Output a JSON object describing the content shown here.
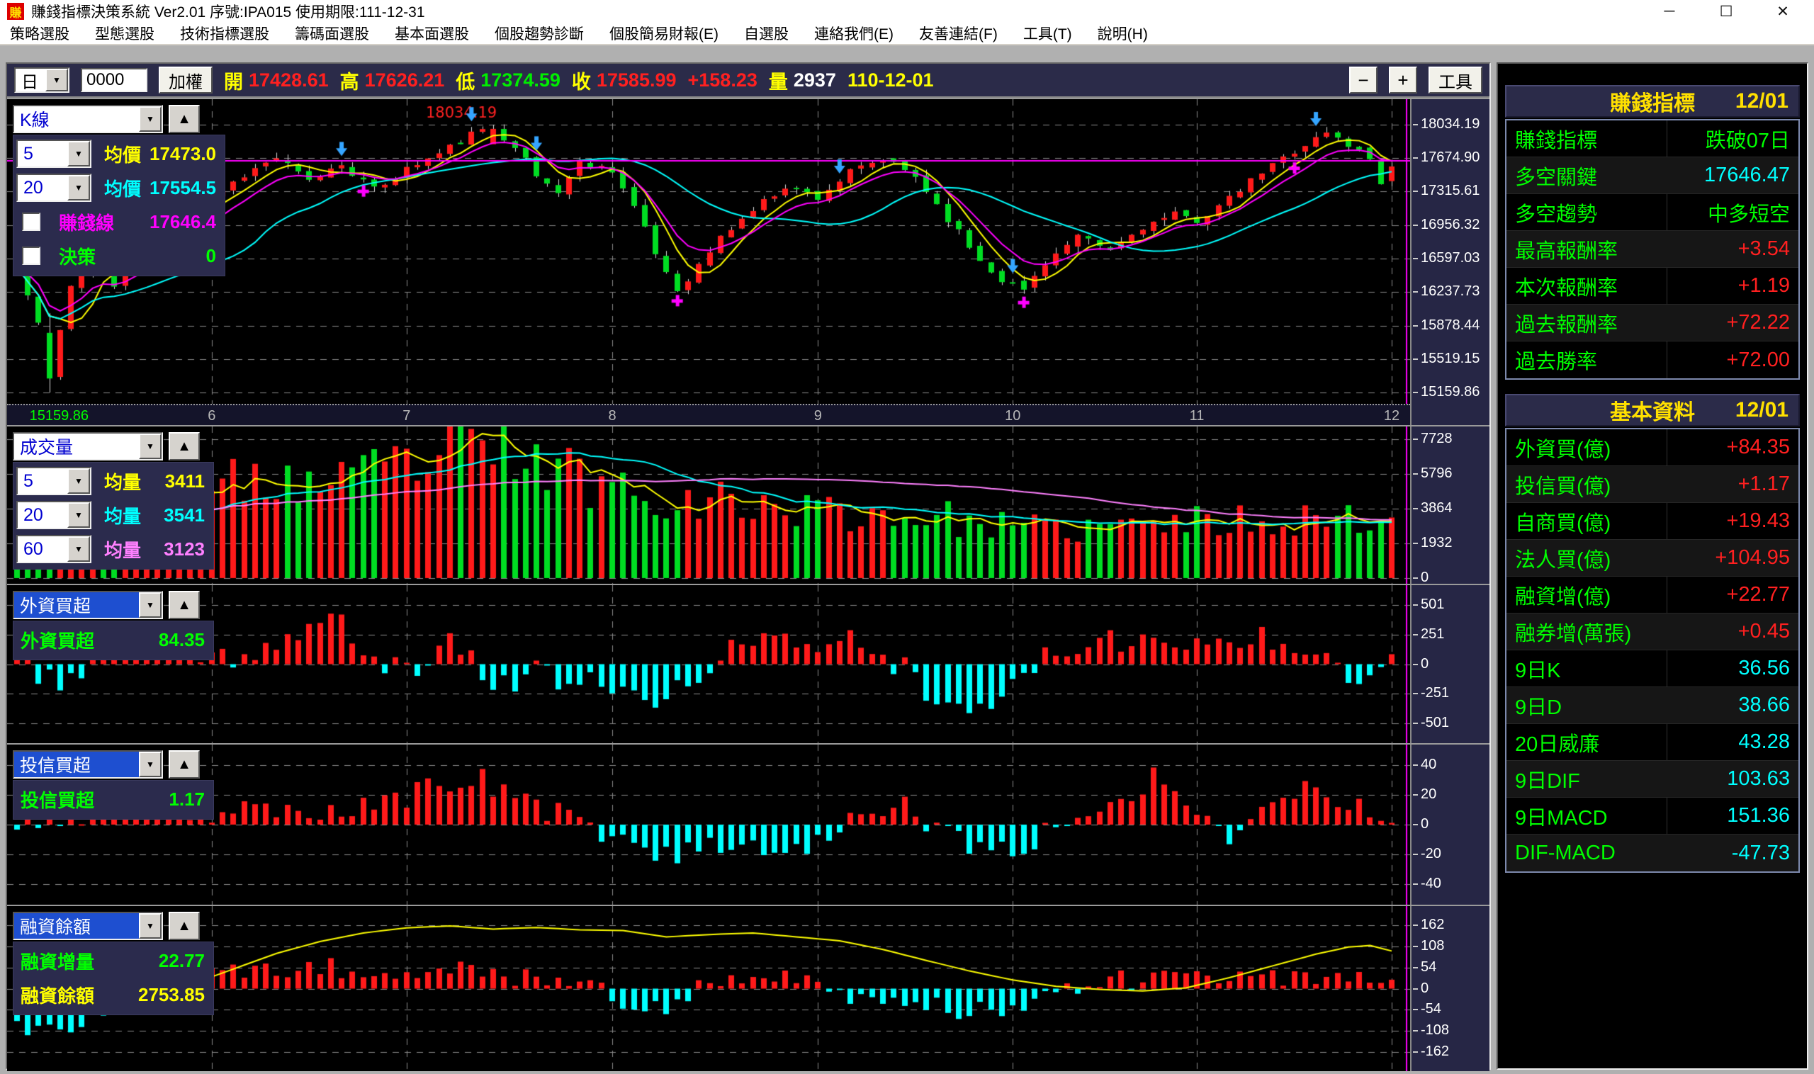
{
  "window": {
    "title": "賺錢指標決策系統 Ver2.01 序號:IPA015 使用期限:111-12-31",
    "icon_text": "賺",
    "controls": {
      "minimize": "─",
      "maximize": "☐",
      "close": "✕"
    }
  },
  "menu": {
    "items": [
      "策略選股",
      "型態選股",
      "技術指標選股",
      "籌碼面選股",
      "基本面選股",
      "個股趨勢診斷",
      "個股簡易財報(E)",
      "自選股",
      "連絡我們(E)",
      "友善連結(F)",
      "工具(T)",
      "說明(H)"
    ]
  },
  "toolbar": {
    "period": "日",
    "symbol": "0000",
    "index_button": "加權",
    "quote": {
      "open_label": "開",
      "open": "17428.61",
      "high_label": "高",
      "high": "17626.21",
      "low_label": "低",
      "low": "17374.59",
      "close_label": "收",
      "close": "17585.99",
      "change": "+158.23",
      "vol_label": "量",
      "volume": "2937",
      "date": "110-12-01"
    },
    "zoom_out": "−",
    "zoom_in": "+",
    "tools_button": "工具"
  },
  "panels": {
    "main": {
      "selector": "K線",
      "highlighted": false,
      "rows": [
        {
          "period": "5",
          "label": "均價",
          "value": "17473.0",
          "color": "#ffff00"
        },
        {
          "period": "20",
          "label": "均價",
          "value": "17554.5",
          "color": "#00ffff"
        },
        {
          "checkbox": true,
          "label": "賺錢線",
          "value": "17646.4",
          "color": "#ff00ff"
        },
        {
          "checkbox": true,
          "label": "決策",
          "value": "0",
          "color": "#00ff00"
        }
      ]
    },
    "vol": {
      "selector": "成交量",
      "highlighted": false,
      "rows": [
        {
          "period": "5",
          "label": "均量",
          "value": "3411",
          "color": "#ffff00"
        },
        {
          "period": "20",
          "label": "均量",
          "value": "3541",
          "color": "#00ffff"
        },
        {
          "period": "60",
          "label": "均量",
          "value": "3123",
          "color": "#ff80ff"
        }
      ]
    },
    "for": {
      "selector": "外資買超",
      "highlighted": true,
      "rows": [
        {
          "label": "外資買超",
          "value": "84.35",
          "color": "#00ff00"
        }
      ]
    },
    "tru": {
      "selector": "投信買超",
      "highlighted": true,
      "rows": [
        {
          "label": "投信買超",
          "value": "1.17",
          "color": "#00ff00"
        }
      ]
    },
    "mar": {
      "selector": "融資餘額",
      "highlighted": true,
      "rows": [
        {
          "label": "融資增量",
          "value": "22.77",
          "color": "#00ff00"
        },
        {
          "label": "融資餘額",
          "value": "2753.85",
          "color": "#ffff00"
        }
      ]
    }
  },
  "sidebar": {
    "section1": {
      "title": "賺錢指標",
      "date": "12/01",
      "rows": [
        {
          "label": "賺錢指標",
          "value": "跌破07日",
          "color": "#00ff00"
        },
        {
          "label": "多空關鍵",
          "value": "17646.47",
          "color": "#00ffff"
        },
        {
          "label": "多空趨勢",
          "value": "中多短空",
          "color": "#00ff00"
        },
        {
          "label": "最高報酬率",
          "value": "+3.54",
          "color": "#ff2020"
        },
        {
          "label": "本次報酬率",
          "value": "+1.19",
          "color": "#ff2020"
        },
        {
          "label": "過去報酬率",
          "value": "+72.22",
          "color": "#ff2020"
        },
        {
          "label": "過去勝率",
          "value": "+72.00",
          "color": "#ff2020"
        }
      ]
    },
    "section2": {
      "title": "基本資料",
      "date": "12/01",
      "rows": [
        {
          "label": "外資買(億)",
          "value": "+84.35",
          "color": "#ff2020"
        },
        {
          "label": "投信買(億)",
          "value": "+1.17",
          "color": "#ff2020"
        },
        {
          "label": "自商買(億)",
          "value": "+19.43",
          "color": "#ff2020"
        },
        {
          "label": "法人買(億)",
          "value": "+104.95",
          "color": "#ff2020"
        },
        {
          "label": "融資增(億)",
          "value": "+22.77",
          "color": "#ff2020"
        },
        {
          "label": "融券增(萬張)",
          "value": "+0.45",
          "color": "#ff2020"
        },
        {
          "label": "9日K",
          "value": "36.56",
          "color": "#00ffff"
        },
        {
          "label": "9日D",
          "value": "38.66",
          "color": "#00ffff"
        },
        {
          "label": "20日威廉",
          "value": "43.28",
          "color": "#00ffff"
        },
        {
          "label": "9日DIF",
          "value": "103.63",
          "color": "#00ffff"
        },
        {
          "label": "9日MACD",
          "value": "151.36",
          "color": "#00ffff"
        },
        {
          "label": "DIF-MACD",
          "value": "-47.73",
          "color": "#00ffff"
        }
      ]
    }
  },
  "chart_data": [
    {
      "id": "main",
      "type": "candlestick",
      "days": 128,
      "yticks": [
        "18034.19",
        "17674.90",
        "17315.61",
        "16956.32",
        "16597.03",
        "16237.73",
        "15878.44",
        "15519.15",
        "15159.86"
      ],
      "months": [
        {
          "label": "6",
          "day": 18
        },
        {
          "label": "7",
          "day": 36
        },
        {
          "label": "8",
          "day": 55
        },
        {
          "label": "9",
          "day": 74
        },
        {
          "label": "10",
          "day": 92
        },
        {
          "label": "11",
          "day": 109
        },
        {
          "label": "12",
          "day": 127
        }
      ],
      "price_anchors": [
        [
          0,
          16500
        ],
        [
          2,
          15900
        ],
        [
          3,
          15300
        ],
        [
          5,
          16300
        ],
        [
          7,
          16650
        ],
        [
          9,
          16300
        ],
        [
          12,
          16750
        ],
        [
          15,
          17100
        ],
        [
          18,
          17250
        ],
        [
          21,
          17500
        ],
        [
          24,
          17680
        ],
        [
          27,
          17420
        ],
        [
          30,
          17620
        ],
        [
          33,
          17330
        ],
        [
          36,
          17560
        ],
        [
          39,
          17720
        ],
        [
          42,
          17930
        ],
        [
          44,
          17990
        ],
        [
          46,
          17820
        ],
        [
          48,
          17480
        ],
        [
          50,
          17320
        ],
        [
          52,
          17620
        ],
        [
          55,
          17560
        ],
        [
          57,
          17150
        ],
        [
          59,
          16650
        ],
        [
          61,
          16260
        ],
        [
          63,
          16520
        ],
        [
          65,
          16820
        ],
        [
          68,
          17120
        ],
        [
          71,
          17380
        ],
        [
          74,
          17260
        ],
        [
          77,
          17520
        ],
        [
          80,
          17660
        ],
        [
          83,
          17480
        ],
        [
          85,
          17180
        ],
        [
          87,
          16880
        ],
        [
          89,
          16580
        ],
        [
          91,
          16380
        ],
        [
          93,
          16260
        ],
        [
          95,
          16560
        ],
        [
          98,
          16820
        ],
        [
          101,
          16680
        ],
        [
          104,
          16940
        ],
        [
          107,
          17060
        ],
        [
          109,
          17010
        ],
        [
          112,
          17230
        ],
        [
          115,
          17520
        ],
        [
          118,
          17760
        ],
        [
          121,
          17950
        ],
        [
          123,
          17820
        ],
        [
          125,
          17680
        ],
        [
          126,
          17430
        ],
        [
          127,
          17586
        ]
      ],
      "noise": 85,
      "seed": 11,
      "last": {
        "open": 17428.61,
        "high": 17626.21,
        "low": 17374.59,
        "close": 17585.99
      },
      "low_day": 3,
      "low": 15159.86,
      "low_label": "15159.86",
      "peak_day": 44,
      "peak": 18034.19,
      "peak_label": "18034.19",
      "hline": 17646.47,
      "hline_color": "#ff00ff",
      "ma": [
        {
          "period": 5,
          "color": "#ffff00"
        },
        {
          "period": 20,
          "color": "#00ffff"
        }
      ],
      "signal_color": "#ff00ff",
      "markers": {
        "arrows": [
          30,
          42,
          48,
          76,
          92,
          120
        ],
        "arrow_color": "#35a5ff",
        "crosses": [
          13,
          32,
          61,
          93,
          118
        ],
        "cross_color": "#ff00ff"
      },
      "up_color": "#ff1a1a",
      "down_color": "#00dd22",
      "wick_color": "#d8d8d8"
    },
    {
      "id": "vol",
      "type": "volume-bar",
      "days": 128,
      "ymax": 8200,
      "yticks": [
        "7728",
        "5796",
        "3864",
        "1932",
        "0"
      ],
      "anchors": [
        [
          0,
          2800
        ],
        [
          6,
          3600
        ],
        [
          12,
          4200
        ],
        [
          18,
          5000
        ],
        [
          24,
          5400
        ],
        [
          30,
          5100
        ],
        [
          36,
          6400
        ],
        [
          40,
          6900
        ],
        [
          44,
          7100
        ],
        [
          48,
          6300
        ],
        [
          52,
          5700
        ],
        [
          56,
          5100
        ],
        [
          60,
          4700
        ],
        [
          64,
          4300
        ],
        [
          68,
          4100
        ],
        [
          72,
          3900
        ],
        [
          76,
          3700
        ],
        [
          80,
          3500
        ],
        [
          84,
          3500
        ],
        [
          88,
          3100
        ],
        [
          92,
          2800
        ],
        [
          96,
          2700
        ],
        [
          100,
          2800
        ],
        [
          104,
          3000
        ],
        [
          108,
          3100
        ],
        [
          112,
          3200
        ],
        [
          116,
          3300
        ],
        [
          120,
          3400
        ],
        [
          124,
          3200
        ],
        [
          126,
          3100
        ],
        [
          127,
          4500
        ]
      ],
      "noise": 0.3,
      "seed": 23,
      "ma": [
        {
          "period": 5,
          "color": "#ffff00"
        },
        {
          "period": 20,
          "color": "#00ffff"
        },
        {
          "period": 60,
          "color": "#ff80ff"
        }
      ]
    },
    {
      "id": "for",
      "type": "net-bar",
      "days": 128,
      "ymax": 560,
      "yticks": [
        "501",
        "251",
        "0",
        "-251",
        "-501"
      ],
      "bias_anchors": [
        [
          0,
          0.1
        ],
        [
          4,
          -0.35
        ],
        [
          8,
          0.15
        ],
        [
          12,
          0.3
        ],
        [
          16,
          0.2
        ],
        [
          20,
          0.15
        ],
        [
          25,
          0.45
        ],
        [
          29,
          0.95
        ],
        [
          32,
          0.25
        ],
        [
          36,
          -0.2
        ],
        [
          40,
          0.5
        ],
        [
          44,
          -0.35
        ],
        [
          48,
          -0.2
        ],
        [
          52,
          -0.3
        ],
        [
          56,
          -0.6
        ],
        [
          59,
          -0.75
        ],
        [
          62,
          -0.5
        ],
        [
          65,
          0.3
        ],
        [
          68,
          0.45
        ],
        [
          72,
          0.35
        ],
        [
          76,
          0.55
        ],
        [
          80,
          0.25
        ],
        [
          84,
          -0.45
        ],
        [
          88,
          -0.8
        ],
        [
          92,
          -0.55
        ],
        [
          96,
          0.3
        ],
        [
          100,
          0.5
        ],
        [
          104,
          0.45
        ],
        [
          108,
          0.35
        ],
        [
          112,
          0.45
        ],
        [
          116,
          0.55
        ],
        [
          120,
          0.35
        ],
        [
          124,
          -0.25
        ],
        [
          127,
          0.17
        ]
      ],
      "scale": 430,
      "noise": 0.55,
      "seed": 37,
      "last": 84.35,
      "pos_color": "#ff1a1a",
      "neg_color": "#00ffff"
    },
    {
      "id": "tru",
      "type": "net-bar",
      "days": 128,
      "ymax": 45,
      "yticks": [
        "40",
        "20",
        "0",
        "-20",
        "-40"
      ],
      "bias_anchors": [
        [
          0,
          0.12
        ],
        [
          5,
          0.2
        ],
        [
          10,
          0.3
        ],
        [
          15,
          0.28
        ],
        [
          20,
          0.22
        ],
        [
          25,
          0.3
        ],
        [
          30,
          0.32
        ],
        [
          35,
          0.45
        ],
        [
          40,
          0.85
        ],
        [
          43,
          0.9
        ],
        [
          46,
          0.5
        ],
        [
          50,
          0.2
        ],
        [
          54,
          -0.25
        ],
        [
          58,
          -0.45
        ],
        [
          62,
          -0.55
        ],
        [
          66,
          -0.35
        ],
        [
          70,
          -0.45
        ],
        [
          74,
          -0.3
        ],
        [
          78,
          0.25
        ],
        [
          82,
          0.3
        ],
        [
          86,
          -0.25
        ],
        [
          90,
          -0.5
        ],
        [
          94,
          -0.3
        ],
        [
          98,
          0.2
        ],
        [
          102,
          0.6
        ],
        [
          105,
          0.9
        ],
        [
          108,
          0.45
        ],
        [
          112,
          -0.2
        ],
        [
          116,
          0.5
        ],
        [
          120,
          0.75
        ],
        [
          124,
          0.35
        ],
        [
          127,
          0.03
        ]
      ],
      "scale": 34,
      "noise": 0.5,
      "seed": 53,
      "last": 1.17,
      "pos_color": "#ff1a1a",
      "neg_color": "#00ffff"
    },
    {
      "id": "mar",
      "type": "net-bar-line",
      "days": 128,
      "ymax": 178,
      "yticks": [
        "162",
        "108",
        "54",
        "0",
        "-54",
        "-108",
        "-162"
      ],
      "bias_anchors": [
        [
          0,
          -0.85
        ],
        [
          4,
          -0.9
        ],
        [
          8,
          -0.5
        ],
        [
          12,
          0.2
        ],
        [
          16,
          0.3
        ],
        [
          20,
          0.42
        ],
        [
          24,
          0.5
        ],
        [
          28,
          0.5
        ],
        [
          32,
          0.42
        ],
        [
          36,
          0.34
        ],
        [
          40,
          0.42
        ],
        [
          44,
          0.3
        ],
        [
          48,
          0.22
        ],
        [
          52,
          0.2
        ],
        [
          56,
          -0.3
        ],
        [
          60,
          -0.42
        ],
        [
          64,
          0.2
        ],
        [
          68,
          0.3
        ],
        [
          72,
          0.22
        ],
        [
          76,
          -0.2
        ],
        [
          80,
          -0.32
        ],
        [
          84,
          -0.42
        ],
        [
          88,
          -0.5
        ],
        [
          92,
          -0.32
        ],
        [
          96,
          -0.22
        ],
        [
          100,
          0.2
        ],
        [
          104,
          0.2
        ],
        [
          108,
          0.16
        ],
        [
          112,
          0.2
        ],
        [
          116,
          0.26
        ],
        [
          120,
          0.22
        ],
        [
          124,
          0.3
        ],
        [
          127,
          0.21
        ]
      ],
      "scale": 115,
      "noise": 0.5,
      "seed": 71,
      "last": 22.77,
      "pos_color": "#ff1a1a",
      "neg_color": "#00ffff",
      "line_color": "#ffff00",
      "line_anchors": [
        [
          0,
          -42
        ],
        [
          4,
          -62
        ],
        [
          8,
          -55
        ],
        [
          12,
          -30
        ],
        [
          16,
          10
        ],
        [
          20,
          50
        ],
        [
          24,
          90
        ],
        [
          28,
          120
        ],
        [
          32,
          142
        ],
        [
          36,
          155
        ],
        [
          40,
          160
        ],
        [
          44,
          152
        ],
        [
          48,
          156
        ],
        [
          52,
          150
        ],
        [
          56,
          148
        ],
        [
          60,
          132
        ],
        [
          64,
          138
        ],
        [
          68,
          142
        ],
        [
          72,
          132
        ],
        [
          76,
          122
        ],
        [
          80,
          100
        ],
        [
          84,
          72
        ],
        [
          88,
          45
        ],
        [
          92,
          22
        ],
        [
          96,
          6
        ],
        [
          100,
          -2
        ],
        [
          104,
          -6
        ],
        [
          108,
          2
        ],
        [
          112,
          28
        ],
        [
          116,
          58
        ],
        [
          120,
          88
        ],
        [
          123,
          106
        ],
        [
          125,
          110
        ],
        [
          127,
          96
        ]
      ]
    }
  ],
  "cursor_color": "#ff00ff",
  "grid_color": "#8a8a8a"
}
